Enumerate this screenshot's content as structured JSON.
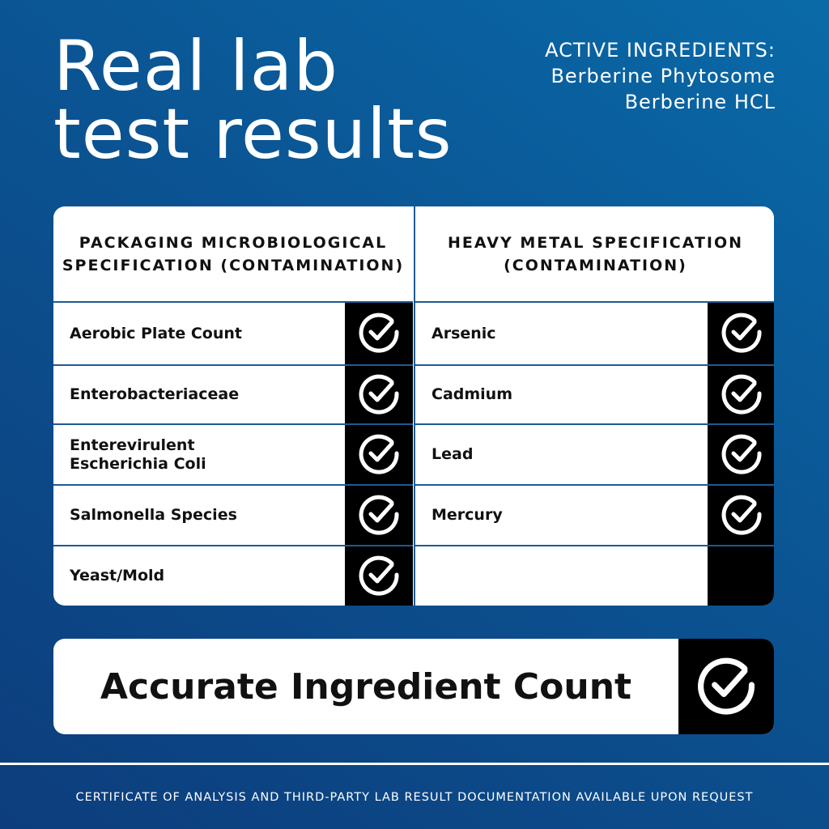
{
  "title": {
    "line1": "Real lab",
    "line2": "test results"
  },
  "active_ingredients": {
    "heading": "ACTIVE INGREDIENTS:",
    "items": [
      "Berberine Phytosome",
      "Berberine HCL"
    ]
  },
  "table": {
    "microbiological": {
      "header_line1": "PACKAGING MICROBIOLOGICAL",
      "header_line2": "SPECIFICATION (CONTAMINATION)",
      "rows": [
        {
          "label": "Aerobic Plate Count",
          "passed": true
        },
        {
          "label": "Enterobacteriaceae",
          "passed": true
        },
        {
          "label_line1": "Enterevirulent",
          "label_line2": "Escherichia Coli",
          "passed": true
        },
        {
          "label": "Salmonella Species",
          "passed": true
        },
        {
          "label": "Yeast/Mold",
          "passed": true
        }
      ]
    },
    "heavy_metal": {
      "header_line1": "HEAVY METAL SPECIFICATION",
      "header_line2": "(CONTAMINATION)",
      "rows": [
        {
          "label": "Arsenic",
          "passed": true
        },
        {
          "label": "Cadmium",
          "passed": true
        },
        {
          "label": "Lead",
          "passed": true
        },
        {
          "label": "Mercury",
          "passed": true
        },
        {
          "label": "",
          "passed": false
        }
      ]
    }
  },
  "accurate_count": {
    "label": "Accurate Ingredient Count",
    "passed": true
  },
  "footer": "CERTIFICATE OF ANALYSIS AND THIRD-PARTY LAB RESULT DOCUMENTATION AVAILABLE UPON REQUEST",
  "colors": {
    "background_light": "#0a6aa8",
    "background_dark": "#0d3d7c",
    "grid_line": "#1d5a94",
    "check_cell": "#000000"
  },
  "icons": {
    "check": "circle-check-icon"
  }
}
